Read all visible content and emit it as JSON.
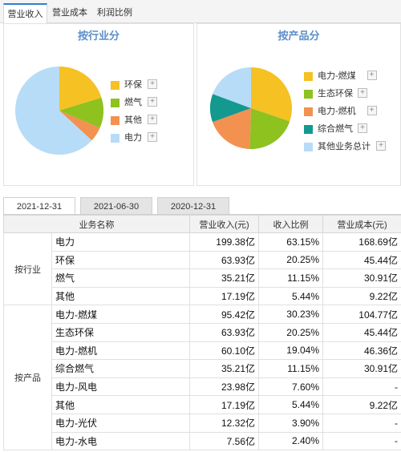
{
  "top_tabs": [
    {
      "label": "营业收入",
      "active": true
    },
    {
      "label": "营业成本",
      "active": false
    },
    {
      "label": "利润比例",
      "active": false
    }
  ],
  "charts": {
    "industry": {
      "title": "按行业分",
      "chart_data": {
        "type": "pie",
        "categories": [
          "环保",
          "燃气",
          "其他",
          "电力"
        ],
        "values": [
          20.25,
          11.15,
          5.44,
          63.15
        ],
        "colors": [
          "#f5c123",
          "#8dc21f",
          "#f39151",
          "#b7dcf7"
        ]
      }
    },
    "product": {
      "title": "按产品分",
      "chart_data": {
        "type": "pie",
        "categories": [
          "电力-燃煤",
          "生态环保",
          "电力-燃机",
          "综合燃气",
          "其他业务总计"
        ],
        "values": [
          30.23,
          20.25,
          19.04,
          11.15,
          19.33
        ],
        "colors": [
          "#f5c123",
          "#8dc21f",
          "#f39151",
          "#14998f",
          "#b7dcf7"
        ]
      }
    },
    "plus_symbol": "+"
  },
  "date_tabs": [
    {
      "label": "2021-12-31",
      "active": true
    },
    {
      "label": "2021-06-30",
      "active": false
    },
    {
      "label": "2020-12-31",
      "active": false
    }
  ],
  "table": {
    "headers": [
      "业务名称",
      "营业收入(元)",
      "收入比例",
      "营业成本(元)"
    ],
    "groups": [
      {
        "label": "按行业",
        "rows": [
          {
            "name": "电力",
            "revenue": "199.38亿",
            "ratio": "63.15%",
            "cost": "168.69亿"
          },
          {
            "name": "环保",
            "revenue": "63.93亿",
            "ratio": "20.25%",
            "cost": "45.44亿"
          },
          {
            "name": "燃气",
            "revenue": "35.21亿",
            "ratio": "11.15%",
            "cost": "30.91亿"
          },
          {
            "name": "其他",
            "revenue": "17.19亿",
            "ratio": "5.44%",
            "cost": "9.22亿"
          }
        ]
      },
      {
        "label": "按产品",
        "rows": [
          {
            "name": "电力-燃煤",
            "revenue": "95.42亿",
            "ratio": "30.23%",
            "cost": "104.77亿"
          },
          {
            "name": "生态环保",
            "revenue": "63.93亿",
            "ratio": "20.25%",
            "cost": "45.44亿"
          },
          {
            "name": "电力-燃机",
            "revenue": "60.10亿",
            "ratio": "19.04%",
            "cost": "46.36亿"
          },
          {
            "name": "综合燃气",
            "revenue": "35.21亿",
            "ratio": "11.15%",
            "cost": "30.91亿"
          },
          {
            "name": "电力-风电",
            "revenue": "23.98亿",
            "ratio": "7.60%",
            "cost": "-"
          },
          {
            "name": "其他",
            "revenue": "17.19亿",
            "ratio": "5.44%",
            "cost": "9.22亿"
          },
          {
            "name": "电力-光伏",
            "revenue": "12.32亿",
            "ratio": "3.90%",
            "cost": "-"
          },
          {
            "name": "电力-水电",
            "revenue": "7.56亿",
            "ratio": "2.40%",
            "cost": "-"
          }
        ]
      }
    ]
  }
}
